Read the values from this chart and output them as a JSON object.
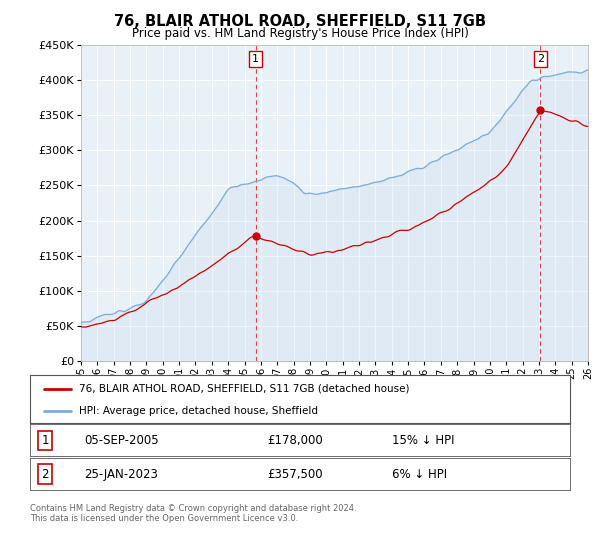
{
  "title": "76, BLAIR ATHOL ROAD, SHEFFIELD, S11 7GB",
  "subtitle": "Price paid vs. HM Land Registry's House Price Index (HPI)",
  "ylim": [
    0,
    450000
  ],
  "yticks": [
    0,
    50000,
    100000,
    150000,
    200000,
    250000,
    300000,
    350000,
    400000,
    450000
  ],
  "hpi_color": "#7aadd4",
  "hpi_fill_color": "#ccddf0",
  "price_color": "#cc0000",
  "vline_color": "#cc0000",
  "marker1_price": 178000,
  "marker2_price": 357500,
  "t1": 2005.67,
  "t2": 2023.08,
  "legend_label1": "76, BLAIR ATHOL ROAD, SHEFFIELD, S11 7GB (detached house)",
  "legend_label2": "HPI: Average price, detached house, Sheffield",
  "table_row1": [
    "1",
    "05-SEP-2005",
    "£178,000",
    "15% ↓ HPI"
  ],
  "table_row2": [
    "2",
    "25-JAN-2023",
    "£357,500",
    "6% ↓ HPI"
  ],
  "footnote": "Contains HM Land Registry data © Crown copyright and database right 2024.\nThis data is licensed under the Open Government Licence v3.0.",
  "background_color": "#ffffff",
  "plot_bg_color": "#e8f0f8"
}
